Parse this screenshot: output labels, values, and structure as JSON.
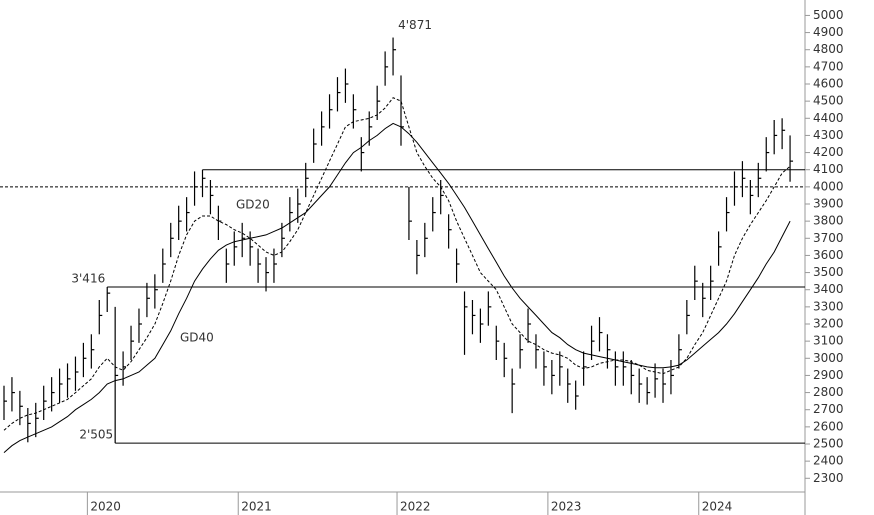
{
  "chart_data": {
    "type": "ohlc",
    "categories": [
      null,
      null,
      null,
      null,
      null,
      null,
      null,
      null,
      null,
      null,
      null,
      "2020",
      null,
      null,
      null,
      null,
      null,
      null,
      null,
      null,
      null,
      null,
      null,
      null,
      null,
      null,
      null,
      null,
      null,
      null,
      "2021",
      null,
      null,
      null,
      null,
      null,
      null,
      null,
      null,
      null,
      null,
      null,
      null,
      null,
      null,
      null,
      null,
      null,
      null,
      null,
      "2022",
      null,
      null,
      null,
      null,
      null,
      null,
      null,
      null,
      null,
      null,
      null,
      null,
      null,
      null,
      null,
      null,
      null,
      null,
      "2023",
      null,
      null,
      null,
      null,
      null,
      null,
      null,
      null,
      null,
      null,
      null,
      null,
      null,
      null,
      null,
      null,
      null,
      null,
      "2024",
      null,
      null,
      null,
      null,
      null,
      null,
      null,
      null,
      null,
      null,
      null
    ],
    "high": [
      2840,
      2890,
      2810,
      2710,
      2740,
      2840,
      2890,
      2940,
      2970,
      3010,
      3090,
      3140,
      3340,
      3416,
      3300,
      3040,
      3190,
      3290,
      3440,
      3490,
      3640,
      3790,
      3890,
      3940,
      4090,
      4100,
      4040,
      3890,
      3640,
      3740,
      3790,
      3740,
      3640,
      3590,
      3640,
      3790,
      3940,
      3990,
      4140,
      4340,
      4440,
      4540,
      4640,
      4690,
      4540,
      4290,
      4440,
      4590,
      4790,
      4871,
      4650,
      4000,
      3690,
      3790,
      3940,
      4040,
      3840,
      3640,
      3390,
      3340,
      3290,
      3390,
      3190,
      3090,
      2940,
      3140,
      3290,
      3140,
      3040,
      2990,
      3040,
      2940,
      2870,
      3040,
      3190,
      3240,
      3140,
      3040,
      3040,
      2990,
      2940,
      2890,
      2970,
      2940,
      2990,
      3140,
      3340,
      3540,
      3440,
      3540,
      3740,
      3940,
      4090,
      4150,
      4040,
      4140,
      4290,
      4390,
      4400,
      4300
    ],
    "low": [
      2640,
      2690,
      2610,
      2510,
      2540,
      2640,
      2690,
      2740,
      2770,
      2810,
      2890,
      2940,
      3140,
      3270,
      2505,
      2840,
      2990,
      3090,
      3240,
      3290,
      3440,
      3590,
      3690,
      3740,
      3890,
      3940,
      3840,
      3690,
      3440,
      3540,
      3590,
      3540,
      3440,
      3390,
      3440,
      3590,
      3740,
      3790,
      3940,
      4140,
      4240,
      4340,
      4440,
      4490,
      4340,
      4090,
      4240,
      4390,
      4590,
      4650,
      4240,
      3690,
      3490,
      3590,
      3740,
      3840,
      3640,
      3440,
      3020,
      3140,
      3090,
      3190,
      2990,
      2890,
      2680,
      2940,
      3090,
      2940,
      2840,
      2790,
      2840,
      2740,
      2700,
      2840,
      2990,
      3040,
      2940,
      2840,
      2840,
      2790,
      2740,
      2730,
      2770,
      2740,
      2790,
      2940,
      3140,
      3340,
      3240,
      3340,
      3540,
      3740,
      3890,
      3940,
      3840,
      3940,
      4090,
      4190,
      4220,
      4030
    ],
    "close": [
      2750,
      2800,
      2720,
      2620,
      2650,
      2750,
      2800,
      2850,
      2880,
      2920,
      3000,
      3050,
      3250,
      3380,
      2900,
      2950,
      3100,
      3200,
      3350,
      3400,
      3550,
      3700,
      3800,
      3850,
      4000,
      4050,
      3950,
      3800,
      3550,
      3650,
      3700,
      3650,
      3550,
      3500,
      3550,
      3700,
      3850,
      3900,
      4050,
      4250,
      4350,
      4450,
      4550,
      4600,
      4450,
      4200,
      4350,
      4500,
      4700,
      4800,
      4350,
      3800,
      3600,
      3700,
      3850,
      3950,
      3750,
      3550,
      3300,
      3250,
      3200,
      3300,
      3100,
      3000,
      2850,
      3050,
      3200,
      3050,
      2950,
      2900,
      2950,
      2850,
      2780,
      2950,
      3100,
      3150,
      3050,
      2950,
      2950,
      2900,
      2850,
      2800,
      2880,
      2850,
      2900,
      3050,
      3250,
      3450,
      3350,
      3450,
      3650,
      3850,
      4000,
      4050,
      3950,
      4050,
      4200,
      4300,
      4330,
      4150
    ],
    "color": "#000000",
    "series": [
      {
        "name": "GD20",
        "color": "#000000",
        "dashed": true,
        "values": [
          2580,
          2620,
          2650,
          2670,
          2680,
          2700,
          2720,
          2740,
          2760,
          2800,
          2840,
          2880,
          2950,
          3000,
          2950,
          2930,
          2980,
          3050,
          3120,
          3200,
          3320,
          3450,
          3600,
          3720,
          3800,
          3830,
          3830,
          3800,
          3780,
          3750,
          3730,
          3700,
          3660,
          3620,
          3600,
          3620,
          3680,
          3750,
          3850,
          3950,
          4050,
          4150,
          4250,
          4350,
          4380,
          4390,
          4400,
          4420,
          4460,
          4520,
          4500,
          4350,
          4200,
          4120,
          4050,
          4000,
          3920,
          3800,
          3700,
          3600,
          3500,
          3450,
          3400,
          3300,
          3200,
          3150,
          3100,
          3080,
          3050,
          3030,
          3020,
          3000,
          2960,
          2940,
          2950,
          2970,
          2980,
          2990,
          2990,
          2980,
          2960,
          2930,
          2920,
          2910,
          2930,
          2950,
          3000,
          3080,
          3150,
          3250,
          3350,
          3450,
          3600,
          3700,
          3780,
          3850,
          3920,
          4000,
          4080,
          4120
        ]
      },
      {
        "name": "GD40",
        "color": "#000000",
        "dashed": false,
        "values": [
          2450,
          2490,
          2520,
          2540,
          2560,
          2580,
          2600,
          2630,
          2660,
          2700,
          2730,
          2760,
          2800,
          2850,
          2870,
          2880,
          2900,
          2920,
          2960,
          3000,
          3080,
          3160,
          3260,
          3350,
          3450,
          3520,
          3580,
          3630,
          3660,
          3680,
          3690,
          3700,
          3710,
          3720,
          3740,
          3760,
          3790,
          3820,
          3850,
          3900,
          3950,
          4000,
          4070,
          4140,
          4200,
          4230,
          4270,
          4300,
          4340,
          4370,
          4350,
          4310,
          4260,
          4200,
          4140,
          4080,
          4020,
          3950,
          3880,
          3800,
          3720,
          3640,
          3560,
          3480,
          3410,
          3350,
          3300,
          3250,
          3200,
          3150,
          3120,
          3080,
          3050,
          3030,
          3020,
          3010,
          3000,
          2990,
          2980,
          2970,
          2960,
          2950,
          2945,
          2945,
          2950,
          2960,
          2990,
          3030,
          3070,
          3110,
          3150,
          3200,
          3260,
          3330,
          3400,
          3470,
          3550,
          3620,
          3710,
          3800
        ]
      }
    ],
    "ylim": [
      2220,
      5090
    ],
    "yticks": [
      2300,
      2400,
      2500,
      2600,
      2700,
      2800,
      2900,
      3000,
      3100,
      3200,
      3300,
      3400,
      3500,
      3600,
      3700,
      3800,
      3900,
      4000,
      4100,
      4200,
      4300,
      4400,
      4500,
      4600,
      4700,
      4800,
      4900,
      5000
    ],
    "levels": [
      {
        "value": 4100
      },
      {
        "value": 3416,
        "label": "3'416"
      },
      {
        "value": 2505,
        "label": "2'505"
      }
    ],
    "reference_line": 4000,
    "annotations": [
      {
        "value": 4871,
        "label": "4'871"
      }
    ]
  }
}
